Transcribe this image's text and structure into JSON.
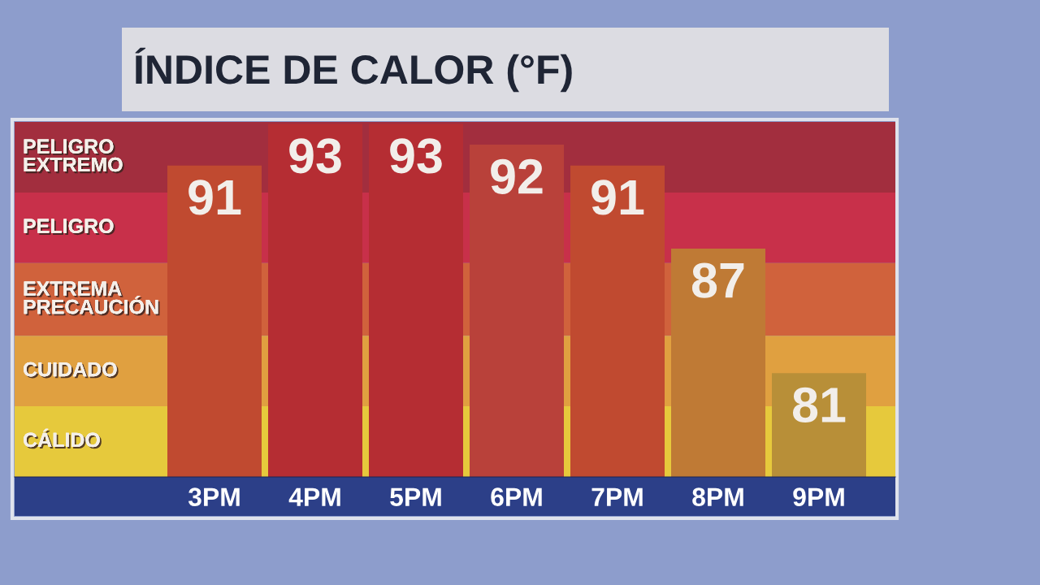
{
  "chart_data": {
    "type": "bar",
    "title": "ÍNDICE DE CALOR (°F)",
    "categories": [
      "3PM",
      "4PM",
      "5PM",
      "6PM",
      "7PM",
      "8PM",
      "9PM"
    ],
    "values": [
      91,
      93,
      93,
      92,
      91,
      87,
      81
    ],
    "colors": [
      "#c04a30",
      "#b52d33",
      "#b52d33",
      "#b9413a",
      "#c04a30",
      "#bf7a35",
      "#b88f38"
    ],
    "ylim": [
      76,
      93.1
    ],
    "bands": [
      {
        "axis": "y",
        "from": 89.7,
        "to": 93.1,
        "label": "PELIGRO\nEXTREMO",
        "color": "#a22e3e"
      },
      {
        "axis": "y",
        "from": 86.3,
        "to": 89.7,
        "label": "PELIGRO",
        "color": "#c8304a"
      },
      {
        "axis": "y",
        "from": 82.8,
        "to": 86.3,
        "label": "EXTREMA\nPRECAUCIÓN",
        "color": "#d0623c"
      },
      {
        "axis": "y",
        "from": 79.4,
        "to": 82.8,
        "label": "CUIDADO",
        "color": "#e0a040"
      },
      {
        "axis": "y",
        "from": 76,
        "to": 79.4,
        "label": "CÁLIDO",
        "color": "#e6c93c"
      }
    ],
    "data_labels": true,
    "tick_labels": "x"
  }
}
